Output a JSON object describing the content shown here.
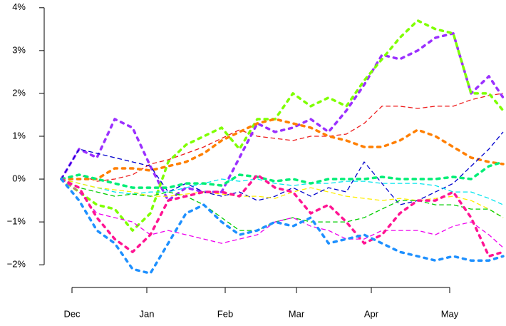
{
  "chart_data": {
    "type": "line",
    "x": [
      0,
      5,
      10,
      15,
      20,
      25,
      30,
      35,
      40,
      45,
      50,
      55,
      60,
      65,
      70,
      75,
      80,
      85,
      90,
      95,
      100,
      105,
      110,
      115,
      120,
      124
    ],
    "xlim": [
      -4.8,
      124.8
    ],
    "xticks": [
      {
        "value": 3,
        "label": "Dec"
      },
      {
        "value": 24,
        "label": "Jan"
      },
      {
        "value": 46,
        "label": "Feb"
      },
      {
        "value": 66,
        "label": "Mar"
      },
      {
        "value": 87,
        "label": "Apr"
      },
      {
        "value": 109,
        "label": "May"
      }
    ],
    "ylim": [
      -2.53,
      4.18
    ],
    "yticks": [
      {
        "value": -2,
        "label": "−2%"
      },
      {
        "value": -1,
        "label": "−1%"
      },
      {
        "value": 0,
        "label": "0%"
      },
      {
        "value": 1,
        "label": "1%"
      },
      {
        "value": 2,
        "label": "2%"
      },
      {
        "value": 3,
        "label": "3%"
      },
      {
        "value": 4,
        "label": "4%"
      }
    ],
    "series": [
      {
        "color": "#ee1c1c",
        "line_style": "dashed",
        "line_width": 1.3,
        "values": [
          0,
          0.1,
          -0.05,
          0.0,
          0.1,
          0.35,
          0.45,
          0.6,
          0.75,
          0.95,
          1.15,
          1.0,
          0.95,
          0.9,
          1.0,
          1.0,
          1.05,
          1.3,
          1.7,
          1.7,
          1.65,
          1.7,
          1.7,
          1.85,
          1.95,
          2.0
        ]
      },
      {
        "color": "#9b30ff",
        "line_style": "dotted",
        "line_width": 3.5,
        "values": [
          0,
          0.7,
          0.5,
          1.4,
          1.2,
          0.3,
          -0.5,
          -0.2,
          -0.3,
          -0.3,
          0.5,
          1.3,
          1.1,
          1.2,
          1.4,
          1.1,
          1.6,
          2.2,
          2.9,
          2.8,
          3.0,
          3.3,
          3.4,
          2.0,
          2.4,
          1.9
        ]
      },
      {
        "color": "#7fff00",
        "line_style": "dotted",
        "line_width": 3.5,
        "values": [
          0,
          -0.3,
          -0.6,
          -0.7,
          -1.2,
          -0.8,
          0.4,
          0.8,
          1.0,
          1.2,
          0.7,
          1.4,
          1.4,
          2.0,
          1.7,
          1.9,
          1.7,
          2.3,
          2.8,
          3.3,
          3.7,
          3.5,
          3.4,
          2.0,
          2.0,
          1.6
        ]
      },
      {
        "color": "#ff7f00",
        "line_style": "dotted",
        "line_width": 3.5,
        "values": [
          0,
          0.0,
          0.0,
          0.25,
          0.25,
          0.2,
          0.3,
          0.4,
          0.6,
          0.9,
          1.1,
          1.3,
          1.4,
          1.3,
          1.2,
          1.0,
          0.9,
          0.75,
          0.75,
          0.9,
          1.15,
          1.0,
          0.75,
          0.5,
          0.4,
          0.35
        ]
      },
      {
        "color": "#0000cd",
        "line_style": "dashed",
        "line_width": 1.3,
        "values": [
          0,
          0.7,
          0.6,
          0.5,
          0.4,
          0.3,
          -0.3,
          -0.1,
          -0.3,
          -0.4,
          -0.3,
          -0.5,
          -0.4,
          -0.2,
          -0.4,
          -0.2,
          -0.3,
          0.4,
          -0.1,
          -0.6,
          -0.5,
          -0.3,
          -0.1,
          0.3,
          0.7,
          1.1
        ]
      },
      {
        "color": "#00e5ee",
        "line_style": "dashed",
        "line_width": 1.3,
        "values": [
          0,
          -0.1,
          -0.2,
          -0.3,
          -0.35,
          -0.3,
          -0.3,
          -0.2,
          -0.1,
          0.0,
          -0.05,
          0.0,
          -0.1,
          -0.15,
          -0.1,
          -0.1,
          -0.05,
          -0.05,
          -0.1,
          -0.1,
          -0.1,
          -0.15,
          -0.3,
          -0.3,
          -0.45,
          -0.6
        ]
      },
      {
        "color": "#00ee76",
        "line_style": "dotted",
        "line_width": 3.5,
        "values": [
          0,
          0.1,
          0.0,
          -0.1,
          -0.2,
          -0.2,
          -0.2,
          -0.1,
          -0.1,
          -0.15,
          0.1,
          0.05,
          -0.05,
          0.0,
          -0.1,
          0.0,
          0.0,
          0.0,
          0.05,
          0.0,
          0.0,
          0.0,
          0.05,
          0.0,
          0.3,
          0.4
        ]
      },
      {
        "color": "#ffee00",
        "line_style": "dashed",
        "line_width": 1.3,
        "values": [
          0,
          -0.1,
          -0.2,
          -0.25,
          -0.3,
          -0.4,
          -0.4,
          -0.35,
          -0.3,
          -0.35,
          -0.4,
          -0.4,
          -0.45,
          -0.3,
          -0.2,
          -0.3,
          -0.4,
          -0.45,
          -0.5,
          -0.45,
          -0.5,
          -0.45,
          -0.4,
          -0.5,
          -0.7,
          -0.9
        ]
      },
      {
        "color": "#00cd00",
        "line_style": "dashed",
        "line_width": 1.3,
        "values": [
          0,
          -0.2,
          -0.3,
          -0.4,
          -0.35,
          -0.4,
          -0.3,
          -0.4,
          -0.6,
          -0.9,
          -1.2,
          -1.2,
          -1.0,
          -0.9,
          -1.0,
          -1.0,
          -1.0,
          -0.9,
          -0.7,
          -0.5,
          -0.5,
          -0.6,
          -0.6,
          -0.7,
          -0.7,
          -0.9
        ]
      },
      {
        "color": "#ee00ee",
        "line_style": "dashed",
        "line_width": 1.3,
        "values": [
          0,
          -0.3,
          -0.8,
          -0.9,
          -1.0,
          -1.3,
          -1.2,
          -1.3,
          -1.4,
          -1.5,
          -1.4,
          -1.3,
          -1.0,
          -0.9,
          -1.1,
          -1.2,
          -1.4,
          -1.4,
          -1.2,
          -1.2,
          -1.2,
          -1.3,
          -1.1,
          -1.0,
          -1.3,
          -1.6
        ]
      },
      {
        "color": "#ff1493",
        "line_style": "dotted",
        "line_width": 3.5,
        "values": [
          0,
          -0.2,
          -0.9,
          -1.4,
          -1.7,
          -1.3,
          -0.5,
          -0.4,
          -0.3,
          -0.3,
          -0.4,
          0.1,
          -0.2,
          -0.3,
          -0.8,
          -0.6,
          -1.0,
          -1.5,
          -1.3,
          -0.8,
          -0.5,
          -0.5,
          -0.3,
          -0.9,
          -1.8,
          -1.7
        ]
      },
      {
        "color": "#1e90ff",
        "line_style": "dotted",
        "line_width": 3.5,
        "values": [
          0,
          -0.5,
          -1.2,
          -1.5,
          -2.1,
          -2.2,
          -1.5,
          -0.8,
          -0.6,
          -1.0,
          -1.3,
          -1.2,
          -1.0,
          -1.1,
          -0.9,
          -1.5,
          -1.4,
          -1.3,
          -1.5,
          -1.7,
          -1.8,
          -1.9,
          -1.8,
          -1.9,
          -1.9,
          -1.8
        ]
      }
    ]
  }
}
